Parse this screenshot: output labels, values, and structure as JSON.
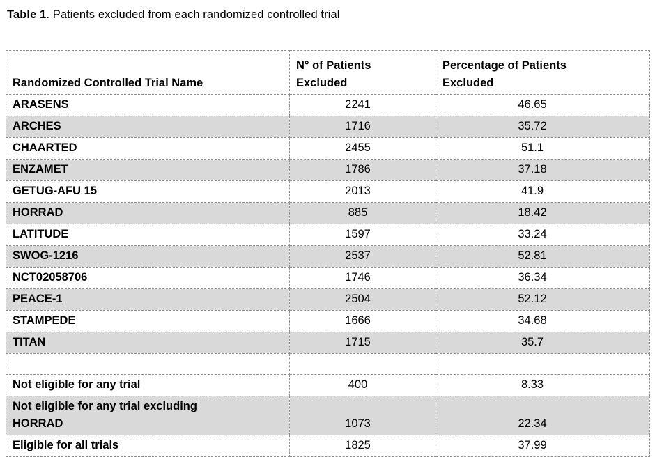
{
  "caption": {
    "label": "Table 1",
    "text": ". Patients excluded from each randomized controlled trial"
  },
  "table": {
    "columns": [
      "Randomized Controlled Trial Name",
      "N° of Patients\nExcluded",
      "Percentage of Patients\nExcluded"
    ],
    "rows": [
      {
        "name": "ARASENS",
        "excluded": "2241",
        "pct": "46.65",
        "shaded": false
      },
      {
        "name": "ARCHES",
        "excluded": "1716",
        "pct": "35.72",
        "shaded": true
      },
      {
        "name": "CHAARTED",
        "excluded": "2455",
        "pct": "51.1",
        "shaded": false
      },
      {
        "name": "ENZAMET",
        "excluded": "1786",
        "pct": "37.18",
        "shaded": true
      },
      {
        "name": "GETUG-AFU 15",
        "excluded": "2013",
        "pct": "41.9",
        "shaded": false
      },
      {
        "name": "HORRAD",
        "excluded": "885",
        "pct": "18.42",
        "shaded": true
      },
      {
        "name": "LATITUDE",
        "excluded": "1597",
        "pct": "33.24",
        "shaded": false
      },
      {
        "name": "SWOG-1216",
        "excluded": "2537",
        "pct": "52.81",
        "shaded": true
      },
      {
        "name": "NCT02058706",
        "excluded": "1746",
        "pct": "36.34",
        "shaded": false
      },
      {
        "name": "PEACE-1",
        "excluded": "2504",
        "pct": "52.12",
        "shaded": true
      },
      {
        "name": "STAMPEDE",
        "excluded": "1666",
        "pct": "34.68",
        "shaded": false
      },
      {
        "name": "TITAN",
        "excluded": "1715",
        "pct": "35.7",
        "shaded": true
      },
      {
        "name": "",
        "excluded": "",
        "pct": "",
        "shaded": false
      },
      {
        "name": "Not eligible for any trial",
        "excluded": "400",
        "pct": "8.33",
        "shaded": false
      },
      {
        "name": "Not eligible for any trial excluding\nHORRAD",
        "excluded": "1073",
        "pct": "22.34",
        "shaded": true
      },
      {
        "name": "Eligible for all trials",
        "excluded": "1825",
        "pct": "37.99",
        "shaded": false
      }
    ]
  },
  "colors": {
    "shaded_row": "#d9d9d9",
    "border": "#8f8f8f",
    "text": "#000000",
    "background": "#ffffff"
  }
}
